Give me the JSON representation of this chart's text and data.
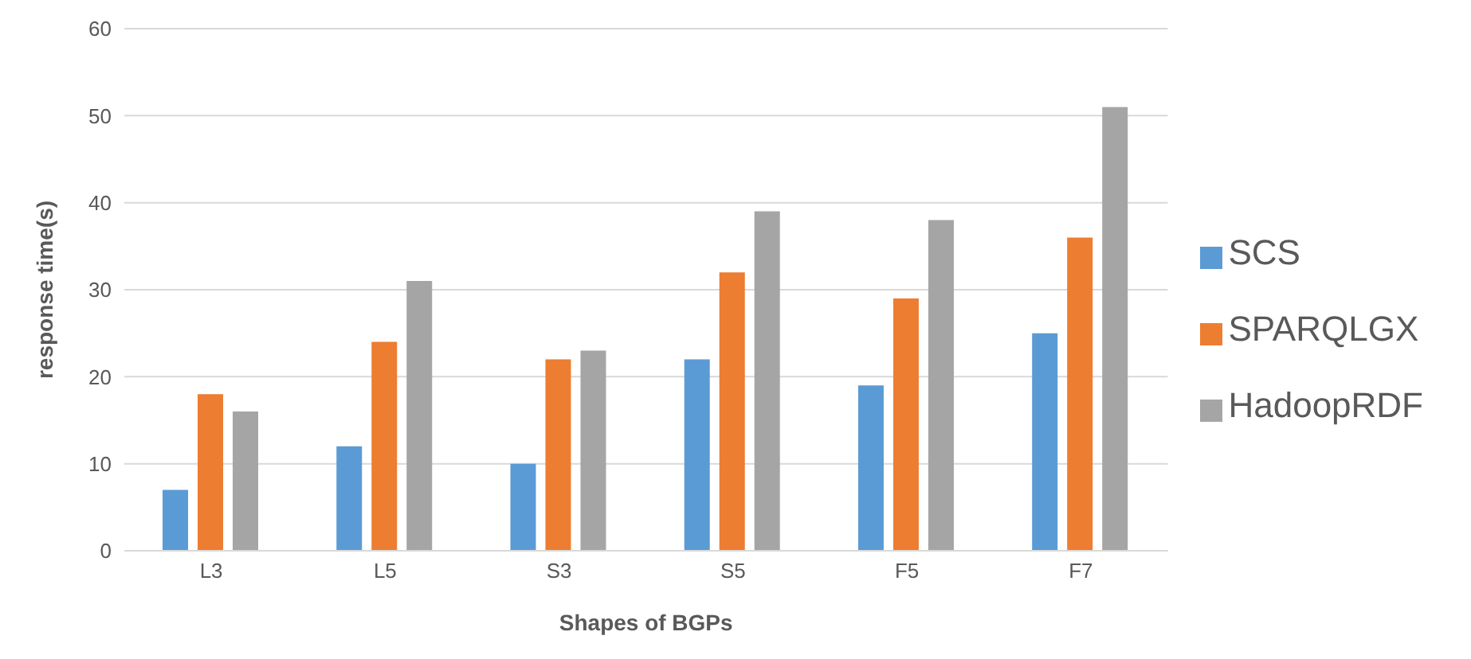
{
  "chart_data": {
    "type": "bar",
    "xlabel": "Shapes of BGPs",
    "ylabel": "response time(s)",
    "categories": [
      "L3",
      "L5",
      "S3",
      "S5",
      "F5",
      "F7"
    ],
    "series": [
      {
        "name": "SCS",
        "color": "#5b9bd5",
        "values": [
          7,
          12,
          10,
          22,
          19,
          25
        ]
      },
      {
        "name": "SPARQLGX",
        "color": "#ed7d31",
        "values": [
          18,
          24,
          22,
          32,
          29,
          36
        ]
      },
      {
        "name": "HadoopRDF",
        "color": "#a5a5a5",
        "values": [
          16,
          31,
          23,
          39,
          38,
          51
        ]
      }
    ],
    "ylim": [
      0,
      60
    ],
    "yticks": [
      0,
      10,
      20,
      30,
      40,
      50,
      60
    ],
    "grid": "y",
    "legend": "right"
  }
}
